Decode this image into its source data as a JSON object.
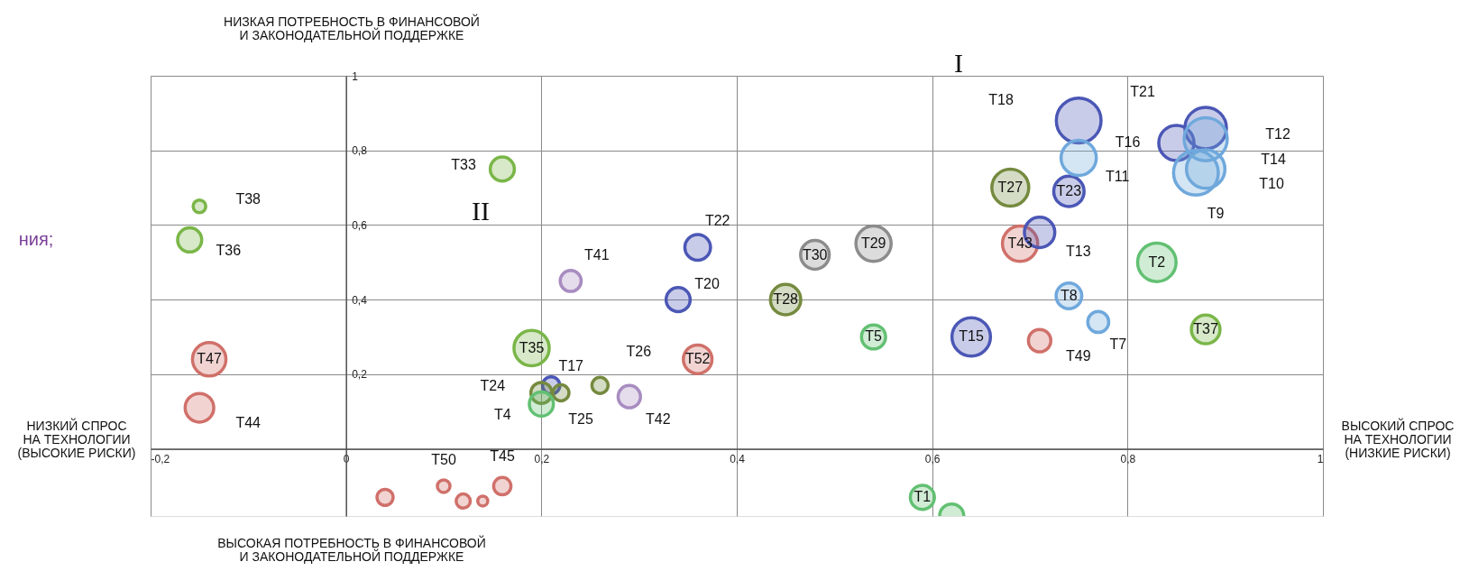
{
  "chart_data": {
    "type": "bubble",
    "xlim": [
      -0.2,
      1
    ],
    "ylim": [
      -0.18,
      1
    ],
    "xticks": [
      {
        "value": -0.2,
        "label": "-0,2"
      },
      0,
      {
        "value": 0.2,
        "label": "0,2"
      },
      {
        "value": 0.4,
        "label": "0,4"
      },
      {
        "value": 0.6,
        "label": "0,6"
      },
      {
        "value": 0.8,
        "label": "0,8"
      },
      1
    ],
    "yticks": [
      {
        "value": 0,
        "label": null
      },
      {
        "value": 0.2,
        "label": "0,2"
      },
      {
        "value": 0.4,
        "label": "0,4"
      },
      {
        "value": 0.6,
        "label": "0,6"
      },
      {
        "value": 0.8,
        "label": "0,8"
      },
      1
    ],
    "grid": true,
    "series": [
      {
        "color": "#7ab648",
        "x": [
          0.16,
          -0.15,
          -0.16,
          0.19,
          0.88
        ],
        "values": [
          0.75,
          0.65,
          0.56,
          0.27,
          0.32
        ],
        "sizes": [
          0.29,
          0.08,
          0.29,
          0.62,
          0.41
        ]
      },
      {
        "color": "#d0706a",
        "x": [
          -0.14,
          -0.15,
          0.36,
          0.69,
          0.71,
          0.04,
          0.1,
          0.12,
          0.14,
          0.16
        ],
        "values": [
          0.24,
          0.11,
          0.24,
          0.55,
          0.29,
          -0.13,
          -0.1,
          -0.14,
          -0.14,
          -0.1
        ],
        "sizes": [
          0.56,
          0.41,
          0.41,
          0.62,
          0.25,
          0.13,
          0.08,
          0.1,
          0.05,
          0.15
        ]
      },
      {
        "color": "#4b57b5",
        "x": [
          0.36,
          0.34,
          0.21,
          0.75,
          0.74,
          0.71,
          0.64,
          0.85,
          0.88
        ],
        "values": [
          0.54,
          0.4,
          0.17,
          0.88,
          0.69,
          0.58,
          0.3,
          0.82,
          0.86
        ],
        "sizes": [
          0.33,
          0.29,
          0.15,
          1,
          0.46,
          0.46,
          0.74,
          0.62,
          0.86
        ]
      },
      {
        "color": "#6fa8dc",
        "x": [
          0.75,
          0.74,
          0.77,
          0.88,
          0.88,
          0.87
        ],
        "values": [
          0.78,
          0.41,
          0.34,
          0.83,
          0.75,
          0.74
        ],
        "sizes": [
          0.62,
          0.33,
          0.22,
          0.93,
          0.74,
          1
        ]
      },
      {
        "color": "#758a3e",
        "x": [
          0.2,
          0.22,
          0.26,
          0.45,
          0.68
        ],
        "values": [
          0.15,
          0.15,
          0.17,
          0.4,
          0.7
        ],
        "sizes": [
          0.22,
          0.13,
          0.13,
          0.46,
          0.68
        ]
      },
      {
        "color": "#8c8c8c",
        "x": [
          0.48,
          0.54
        ],
        "values": [
          0.52,
          0.55
        ],
        "sizes": [
          0.41,
          0.62
        ]
      },
      {
        "color": "#a88cc0",
        "x": [
          0.23,
          0.29
        ],
        "values": [
          0.45,
          0.14
        ],
        "sizes": [
          0.22,
          0.25
        ]
      },
      {
        "color": "#62c072",
        "x": [
          0.2,
          0.54,
          0.83,
          0.59,
          0.62
        ],
        "values": [
          0.12,
          0.3,
          0.5,
          -0.13,
          -0.18
        ],
        "sizes": [
          0.29,
          0.29,
          0.74,
          0.29,
          0.29
        ]
      }
    ],
    "annotations": [
      "НИЗКАЯ ПОТРЕБНОСТЬ В ФИНАНСОВОЙ\nИ ЗАКОНОДАТЕЛЬНОЙ ПОДДЕРЖКЕ",
      "ВЫСОКАЯ ПОТРЕБНОСТЬ В ФИНАНСОВОЙ\nИ ЗАКОНОДАТЕЛЬНОЙ ПОДДЕРЖКЕ",
      "НИЗКИЙ СПРОС\nНА ТЕХНОЛОГИИ\n(ВЫСОКИЕ РИСКИ)",
      "ВЫСОКИЙ СПРОС\nНА ТЕХНОЛОГИИ\n(НИЗКИЕ РИСКИ)",
      "ния;",
      "I",
      "II",
      "T18",
      "T21",
      "T12",
      "T14",
      "T10",
      {
        "text": "T33",
        "x": 0.16,
        "y": 0.75
      },
      {
        "text": "T38",
        "x": -0.15,
        "y": 0.65
      },
      {
        "text": "T36",
        "x": -0.16,
        "y": 0.56
      },
      {
        "text": "T47",
        "x": -0.14,
        "y": 0.24
      },
      {
        "text": "T44",
        "x": -0.15,
        "y": 0.11
      },
      {
        "text": "T35",
        "x": 0.19,
        "y": 0.27
      },
      {
        "text": "T24",
        "x": 0.2,
        "y": 0.15
      },
      {
        "text": "T4",
        "x": 0.2,
        "y": 0.12
      },
      {
        "text": "T22",
        "x": 0.36,
        "y": 0.54
      },
      {
        "text": "T41",
        "x": 0.23,
        "y": 0.45
      },
      {
        "text": "T20",
        "x": 0.34,
        "y": 0.4
      },
      {
        "text": "T30",
        "x": 0.48,
        "y": 0.52
      },
      {
        "text": "T29",
        "x": 0.54,
        "y": 0.55
      },
      {
        "text": "T28",
        "x": 0.45,
        "y": 0.4
      },
      {
        "text": "T5",
        "x": 0.54,
        "y": 0.3
      },
      {
        "text": "T52",
        "x": 0.36,
        "y": 0.24
      },
      {
        "text": "T26",
        "x": 0.26,
        "y": 0.17
      },
      {
        "text": "T17",
        "x": 0.21,
        "y": 0.17
      },
      {
        "text": "T25",
        "x": 0.22,
        "y": 0.15
      },
      {
        "text": "T42",
        "x": 0.29,
        "y": 0.14
      },
      {
        "text": "T16",
        "x": 0.85,
        "y": 0.82
      },
      {
        "text": "T9",
        "x": 0.87,
        "y": 0.74
      },
      {
        "text": "T11",
        "x": 0.75,
        "y": 0.78
      },
      {
        "text": "T27",
        "x": 0.68,
        "y": 0.7
      },
      {
        "text": "T23",
        "x": 0.74,
        "y": 0.69
      },
      {
        "text": "T13",
        "x": 0.71,
        "y": 0.58
      },
      {
        "text": "T43",
        "x": 0.69,
        "y": 0.55
      },
      {
        "text": "T2",
        "x": 0.83,
        "y": 0.5
      },
      {
        "text": "T8",
        "x": 0.74,
        "y": 0.41
      },
      {
        "text": "T7",
        "x": 0.77,
        "y": 0.34
      },
      {
        "text": "T49",
        "x": 0.71,
        "y": 0.29
      },
      {
        "text": "T15",
        "x": 0.64,
        "y": 0.3
      },
      {
        "text": "T37",
        "x": 0.88,
        "y": 0.32
      },
      {
        "text": "T1",
        "x": 0.59,
        "y": -0.13
      },
      {
        "text": "T50",
        "x": 0.1,
        "y": -0.1
      },
      {
        "text": "T45",
        "x": 0.16,
        "y": -0.1
      }
    ]
  }
}
